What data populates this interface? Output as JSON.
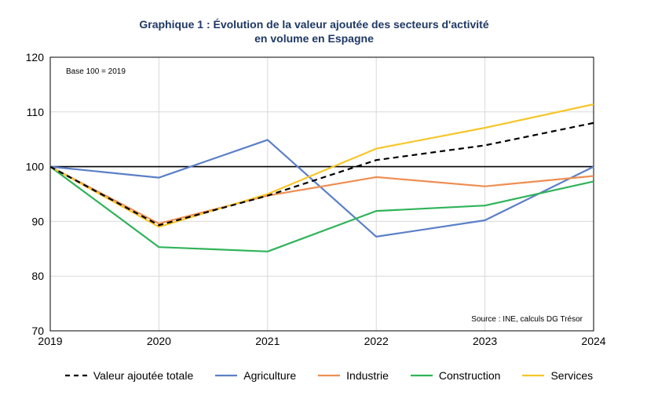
{
  "chart_data": {
    "type": "line",
    "title": "Graphique 1 : Évolution de la valeur ajoutée des secteurs d'activité",
    "subtitle": "en volume en Espagne",
    "x": [
      "2019",
      "2020",
      "2021",
      "2022",
      "2023",
      "2024"
    ],
    "ylim": [
      70,
      120
    ],
    "yticks": [
      70,
      80,
      90,
      100,
      110,
      120
    ],
    "reference_line": 100,
    "annotation_base": "Base 100 = 2019",
    "annotation_source": "Source : INE, calculs DG Trésor",
    "grid": true,
    "legend_position": "bottom",
    "series": [
      {
        "name": "Valeur ajoutée totale",
        "color": "#000000",
        "dashed": true,
        "values": [
          100,
          89.3,
          94.7,
          101.2,
          103.9,
          108.0
        ]
      },
      {
        "name": "Agriculture",
        "color": "#5b7fc7",
        "dashed": false,
        "values": [
          100,
          98.0,
          104.9,
          87.2,
          90.2,
          100.0
        ]
      },
      {
        "name": "Industrie",
        "color": "#ee8e52",
        "dashed": false,
        "values": [
          100,
          89.6,
          94.7,
          98.1,
          96.4,
          98.3
        ]
      },
      {
        "name": "Construction",
        "color": "#2fb359",
        "dashed": false,
        "values": [
          100,
          85.3,
          84.5,
          91.9,
          92.9,
          97.3
        ]
      },
      {
        "name": "Services",
        "color": "#f7c628",
        "dashed": false,
        "values": [
          100,
          89.0,
          95.0,
          103.3,
          107.1,
          111.4
        ]
      }
    ]
  }
}
